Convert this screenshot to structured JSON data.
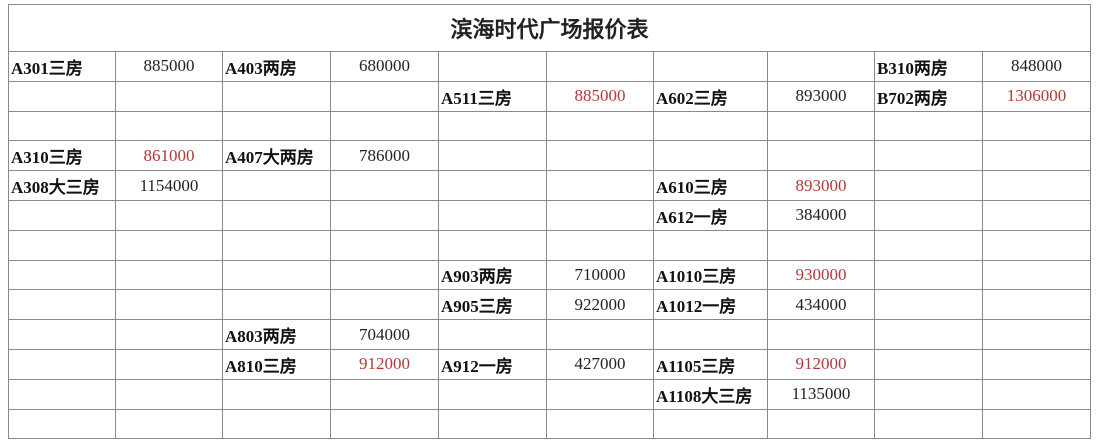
{
  "title": "滨海时代广场报价表",
  "colors": {
    "highlight": "#b03a3a"
  },
  "rows": [
    [
      {
        "t": "A301三房"
      },
      {
        "t": "885000"
      },
      {
        "t": "A403两房"
      },
      {
        "t": "680000"
      },
      {
        "t": ""
      },
      {
        "t": ""
      },
      {
        "t": ""
      },
      {
        "t": ""
      },
      {
        "t": "B310两房"
      },
      {
        "t": "848000"
      }
    ],
    [
      {
        "t": ""
      },
      {
        "t": ""
      },
      {
        "t": ""
      },
      {
        "t": ""
      },
      {
        "t": "A511三房"
      },
      {
        "t": "885000",
        "red": true
      },
      {
        "t": "A602三房"
      },
      {
        "t": "893000"
      },
      {
        "t": "B702两房"
      },
      {
        "t": "1306000",
        "red": true
      }
    ],
    [
      {
        "t": ""
      },
      {
        "t": ""
      },
      {
        "t": ""
      },
      {
        "t": ""
      },
      {
        "t": ""
      },
      {
        "t": ""
      },
      {
        "t": ""
      },
      {
        "t": ""
      },
      {
        "t": ""
      },
      {
        "t": ""
      }
    ],
    [
      {
        "t": "A310三房"
      },
      {
        "t": "861000",
        "red": true
      },
      {
        "t": "A407大两房"
      },
      {
        "t": "786000"
      },
      {
        "t": ""
      },
      {
        "t": ""
      },
      {
        "t": ""
      },
      {
        "t": ""
      },
      {
        "t": ""
      },
      {
        "t": ""
      }
    ],
    [
      {
        "t": "A308大三房"
      },
      {
        "t": "1154000"
      },
      {
        "t": ""
      },
      {
        "t": ""
      },
      {
        "t": ""
      },
      {
        "t": ""
      },
      {
        "t": "A610三房"
      },
      {
        "t": "893000",
        "red": true
      },
      {
        "t": ""
      },
      {
        "t": ""
      }
    ],
    [
      {
        "t": ""
      },
      {
        "t": ""
      },
      {
        "t": ""
      },
      {
        "t": ""
      },
      {
        "t": ""
      },
      {
        "t": ""
      },
      {
        "t": "A612一房"
      },
      {
        "t": "384000"
      },
      {
        "t": ""
      },
      {
        "t": ""
      }
    ],
    [
      {
        "t": ""
      },
      {
        "t": ""
      },
      {
        "t": ""
      },
      {
        "t": ""
      },
      {
        "t": ""
      },
      {
        "t": ""
      },
      {
        "t": ""
      },
      {
        "t": ""
      },
      {
        "t": ""
      },
      {
        "t": ""
      }
    ],
    [
      {
        "t": ""
      },
      {
        "t": ""
      },
      {
        "t": ""
      },
      {
        "t": ""
      },
      {
        "t": "A903两房"
      },
      {
        "t": "710000"
      },
      {
        "t": "A1010三房"
      },
      {
        "t": "930000",
        "red": true
      },
      {
        "t": ""
      },
      {
        "t": ""
      }
    ],
    [
      {
        "t": ""
      },
      {
        "t": ""
      },
      {
        "t": ""
      },
      {
        "t": ""
      },
      {
        "t": "A905三房"
      },
      {
        "t": "922000"
      },
      {
        "t": "A1012一房"
      },
      {
        "t": "434000"
      },
      {
        "t": ""
      },
      {
        "t": ""
      }
    ],
    [
      {
        "t": ""
      },
      {
        "t": ""
      },
      {
        "t": "A803两房"
      },
      {
        "t": "704000"
      },
      {
        "t": ""
      },
      {
        "t": ""
      },
      {
        "t": ""
      },
      {
        "t": ""
      },
      {
        "t": ""
      },
      {
        "t": ""
      }
    ],
    [
      {
        "t": ""
      },
      {
        "t": ""
      },
      {
        "t": "A810三房"
      },
      {
        "t": "912000",
        "red": true
      },
      {
        "t": "A912一房"
      },
      {
        "t": "427000"
      },
      {
        "t": "A1105三房"
      },
      {
        "t": "912000",
        "red": true
      },
      {
        "t": ""
      },
      {
        "t": ""
      }
    ],
    [
      {
        "t": ""
      },
      {
        "t": ""
      },
      {
        "t": ""
      },
      {
        "t": ""
      },
      {
        "t": ""
      },
      {
        "t": ""
      },
      {
        "t": "A1108大三房"
      },
      {
        "t": "1135000"
      },
      {
        "t": ""
      },
      {
        "t": ""
      }
    ],
    [
      {
        "t": ""
      },
      {
        "t": ""
      },
      {
        "t": ""
      },
      {
        "t": ""
      },
      {
        "t": ""
      },
      {
        "t": ""
      },
      {
        "t": ""
      },
      {
        "t": ""
      },
      {
        "t": ""
      },
      {
        "t": ""
      }
    ]
  ]
}
